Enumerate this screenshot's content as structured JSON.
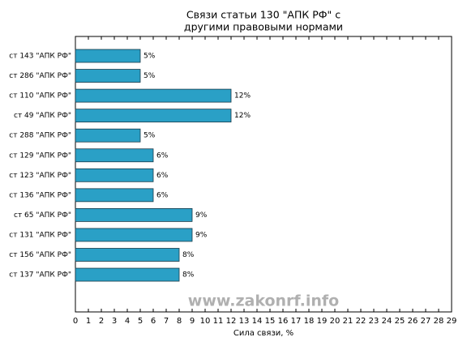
{
  "chart_data": {
    "type": "bar",
    "orientation": "horizontal",
    "title": [
      "Связи статьи 130 \"АПК РФ\" с",
      "другими правовыми нормами"
    ],
    "categories": [
      "ст 143 \"АПК РФ\"",
      "ст 286 \"АПК РФ\"",
      "ст 110 \"АПК РФ\"",
      "ст 49 \"АПК РФ\"",
      "ст 288 \"АПК РФ\"",
      "ст 129 \"АПК РФ\"",
      "ст 123 \"АПК РФ\"",
      "ст 136 \"АПК РФ\"",
      "ст 65 \"АПК РФ\"",
      "ст 131 \"АПК РФ\"",
      "ст 156 \"АПК РФ\"",
      "ст 137 \"АПК РФ\""
    ],
    "values": [
      5,
      5,
      12,
      12,
      5,
      6,
      6,
      6,
      9,
      9,
      8,
      8
    ],
    "value_labels": [
      "5%",
      "5%",
      "12%",
      "12%",
      "5%",
      "6%",
      "6%",
      "6%",
      "9%",
      "9%",
      "8%",
      "8%"
    ],
    "color": "#2aa0c6",
    "xlabel": "Сила связи, %",
    "xlim": [
      0,
      29
    ],
    "xticks": [
      0,
      1,
      2,
      3,
      4,
      5,
      6,
      7,
      8,
      9,
      10,
      11,
      12,
      13,
      14,
      15,
      16,
      17,
      18,
      19,
      20,
      21,
      22,
      23,
      24,
      25,
      26,
      27,
      28,
      29
    ],
    "watermark": "www.zakonrf.info"
  }
}
